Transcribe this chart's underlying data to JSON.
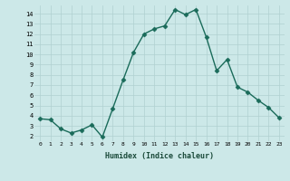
{
  "x": [
    0,
    1,
    2,
    3,
    4,
    5,
    6,
    7,
    8,
    9,
    10,
    11,
    12,
    13,
    14,
    15,
    16,
    17,
    18,
    19,
    20,
    21,
    22,
    23
  ],
  "y": [
    3.7,
    3.6,
    2.7,
    2.3,
    2.6,
    3.1,
    1.9,
    4.7,
    7.5,
    10.2,
    12.0,
    12.5,
    12.8,
    14.4,
    13.9,
    14.4,
    11.7,
    8.4,
    9.5,
    6.8,
    6.3,
    5.5,
    4.8,
    3.8
  ],
  "xlabel": "Humidex (Indice chaleur)",
  "xlim": [
    -0.5,
    23.5
  ],
  "ylim": [
    1.5,
    14.8
  ],
  "yticks": [
    2,
    3,
    4,
    5,
    6,
    7,
    8,
    9,
    10,
    11,
    12,
    13,
    14
  ],
  "xticks": [
    0,
    1,
    2,
    3,
    4,
    5,
    6,
    7,
    8,
    9,
    10,
    11,
    12,
    13,
    14,
    15,
    16,
    17,
    18,
    19,
    20,
    21,
    22,
    23
  ],
  "line_color": "#1a6b5a",
  "bg_color": "#cce8e8",
  "grid_color": "#b0d0d0",
  "marker_size": 2.5,
  "line_width": 1.0
}
